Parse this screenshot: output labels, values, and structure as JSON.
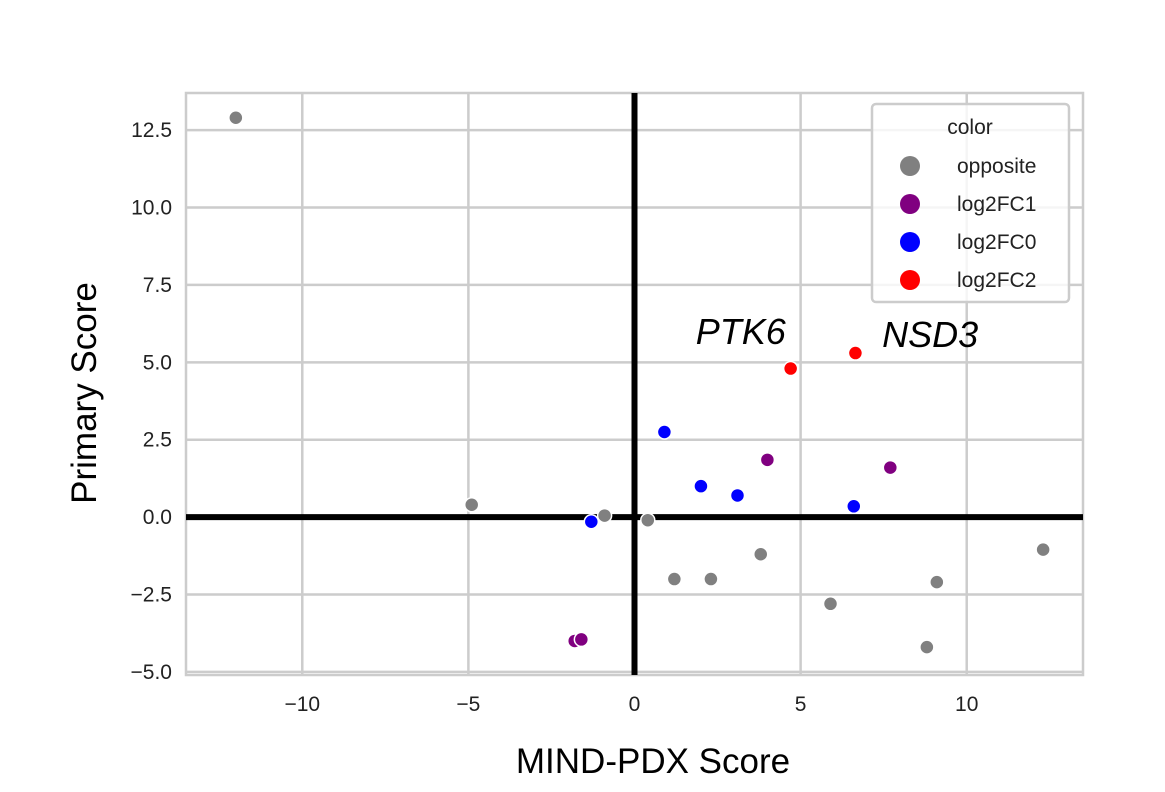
{
  "chart_data": {
    "type": "scatter",
    "xlabel": "MIND-PDX Score",
    "ylabel": "Primary Score",
    "xlim": [
      -13.5,
      13.5
    ],
    "ylim": [
      -5.1,
      13.7
    ],
    "x_ticks": [
      {
        "value": -10,
        "label": "−10"
      },
      {
        "value": -5,
        "label": "−5"
      },
      {
        "value": 0,
        "label": "0"
      },
      {
        "value": 5,
        "label": "5"
      },
      {
        "value": 10,
        "label": "10"
      }
    ],
    "y_ticks": [
      {
        "value": -5.0,
        "label": "−5.0"
      },
      {
        "value": -2.5,
        "label": "−2.5"
      },
      {
        "value": 0.0,
        "label": "0.0"
      },
      {
        "value": 2.5,
        "label": "2.5"
      },
      {
        "value": 5.0,
        "label": "5.0"
      },
      {
        "value": 7.5,
        "label": "7.5"
      },
      {
        "value": 10.0,
        "label": "10.0"
      },
      {
        "value": 12.5,
        "label": "12.5"
      }
    ],
    "grid": true,
    "reference_lines": {
      "x": 0,
      "y": 0,
      "color": "#000000"
    },
    "legend": {
      "title": "color",
      "placement": "top-right"
    },
    "series": [
      {
        "name": "opposite",
        "color": "#808080",
        "points": [
          {
            "x": -12.0,
            "y": 12.9
          },
          {
            "x": -4.9,
            "y": 0.4
          },
          {
            "x": -0.9,
            "y": 0.05
          },
          {
            "x": 0.4,
            "y": -0.1
          },
          {
            "x": 1.2,
            "y": -2.0
          },
          {
            "x": 2.3,
            "y": -2.0
          },
          {
            "x": 3.8,
            "y": -1.2
          },
          {
            "x": 5.9,
            "y": -2.8
          },
          {
            "x": 8.8,
            "y": -4.2
          },
          {
            "x": 9.1,
            "y": -2.1
          },
          {
            "x": 12.3,
            "y": -1.05
          }
        ]
      },
      {
        "name": "log2FC1",
        "color": "#800080",
        "points": [
          {
            "x": -1.8,
            "y": -4.0
          },
          {
            "x": -1.6,
            "y": -3.95
          },
          {
            "x": 4.0,
            "y": 1.85
          },
          {
            "x": 7.7,
            "y": 1.6
          }
        ]
      },
      {
        "name": "log2FC0",
        "color": "#0000ff",
        "points": [
          {
            "x": -1.3,
            "y": -0.15
          },
          {
            "x": 0.9,
            "y": 2.75
          },
          {
            "x": 2.0,
            "y": 1.0
          },
          {
            "x": 3.1,
            "y": 0.7
          },
          {
            "x": 6.6,
            "y": 0.35
          }
        ]
      },
      {
        "name": "log2FC2",
        "color": "#ff0000",
        "points": [
          {
            "x": 4.7,
            "y": 4.8
          },
          {
            "x": 6.65,
            "y": 5.3
          }
        ]
      }
    ],
    "annotations": [
      {
        "text": "PTK6",
        "x": 3.2,
        "y": 5.6
      },
      {
        "text": "NSD3",
        "x": 8.9,
        "y": 5.5
      }
    ]
  }
}
